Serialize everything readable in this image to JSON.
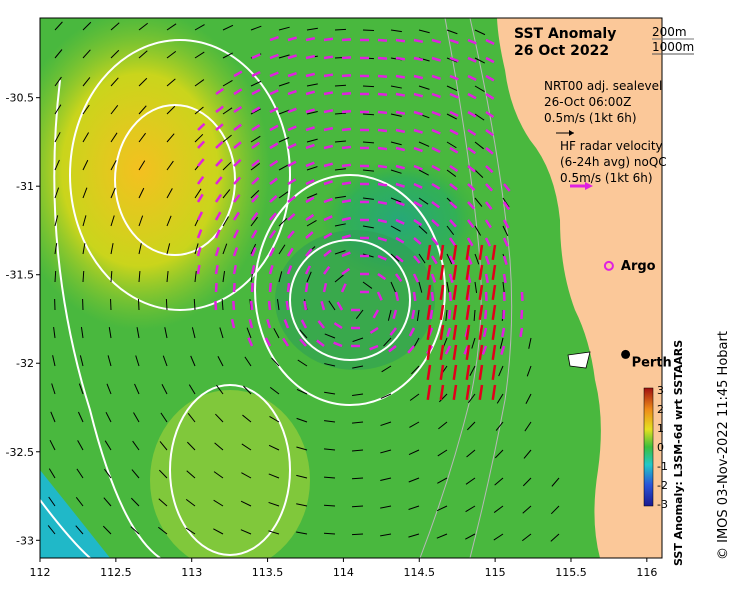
{
  "title": "SST Anomaly",
  "date": "26 Oct 2022",
  "depth_labels": [
    "200m",
    "1000m"
  ],
  "sealevel_note": [
    "NRT00 adj. sealevel",
    "26-Oct 06:00Z",
    "0.5m/s (1kt 6h)"
  ],
  "radar_note": [
    "HF radar velocity",
    "(6-24h avg) noQC",
    "0.5m/s (1kt 6h)"
  ],
  "places": [
    {
      "name": "Argo",
      "lon": 115.75,
      "lat": -31.45,
      "marker": "circle-open",
      "color": "#e020e0"
    },
    {
      "name": "Perth",
      "lon": 115.86,
      "lat": -31.95,
      "marker": "circle-filled",
      "color": "#000000"
    }
  ],
  "x_ticks": [
    "112",
    "112.5",
    "113",
    "113.5",
    "114",
    "114.5",
    "115",
    "115.5",
    "116"
  ],
  "y_ticks": [
    "-30.5",
    "-31",
    "-31.5",
    "-32",
    "-32.5",
    "-33"
  ],
  "lon_range": [
    112,
    116.1
  ],
  "lat_range": [
    -33.1,
    -30.05
  ],
  "colorbar": {
    "title": "SST Anomaly: L3SM-6d wrt SSTAARS",
    "ticks": [
      "3",
      "2",
      "1",
      "0",
      "-1",
      "-2",
      "-3"
    ],
    "range": [
      -3,
      3
    ]
  },
  "credit": "© IMOS 03-Nov-2022 11:45 Hobart",
  "colors": {
    "land": "#fbc899",
    "radar_arrows": "#e020e0",
    "radar_strong": "#e0001a",
    "contours": "#ffffff",
    "isobaths": "#b7b7b7"
  }
}
